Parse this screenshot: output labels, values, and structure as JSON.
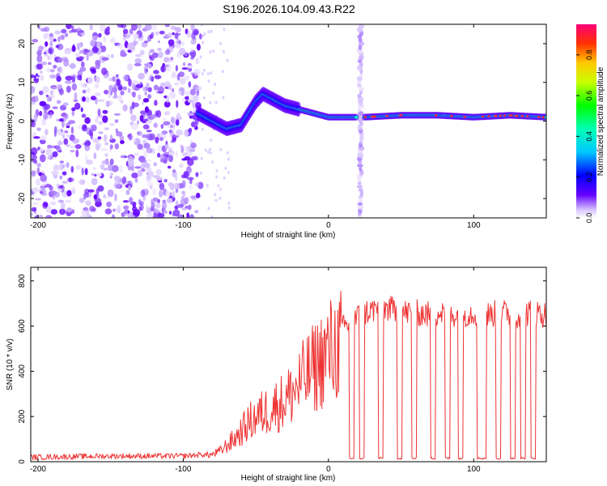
{
  "title": "S196.2026.104.09.43.R22",
  "chart_data": [
    {
      "type": "heatmap",
      "title": "S196.2026.104.09.43.R22",
      "xlabel": "Height of straight line (km)",
      "ylabel": "Frequency (Hz)",
      "xlim": [
        -205,
        150
      ],
      "ylim": [
        -25,
        25
      ],
      "xticks": [
        -200,
        -100,
        0,
        100
      ],
      "yticks": [
        -20,
        -10,
        0,
        10,
        20
      ],
      "colorbar": {
        "label": "Normalized spectral amplitude",
        "range": [
          0.0,
          0.95
        ],
        "ticks": [
          0.0,
          0.2,
          0.4,
          0.6,
          0.8
        ],
        "colors": [
          "#ffffff",
          "#6400ff",
          "#0000ff",
          "#00ffff",
          "#00ff00",
          "#ffff00",
          "#ff8000",
          "#ff0000",
          "#ff0080"
        ]
      },
      "noise_region_x": [
        -205,
        -88
      ],
      "vertical_stripe_x": 22,
      "ridge": {
        "x": [
          -90,
          -80,
          -70,
          -60,
          -50,
          -45,
          -40,
          -30,
          -20,
          -10,
          0,
          10,
          15,
          25,
          50,
          75,
          100,
          125,
          150
        ],
        "frequency": [
          2,
          0,
          -2,
          -1,
          5,
          7,
          6,
          4,
          3,
          2,
          1,
          1,
          1,
          1,
          1.5,
          1.5,
          1,
          1.5,
          1
        ]
      }
    },
    {
      "type": "line",
      "xlabel": "Height of straight line (km)",
      "ylabel": "SNR (10 * v/v)",
      "xlim": [
        -205,
        150
      ],
      "ylim": [
        0,
        860
      ],
      "xticks": [
        -200,
        -100,
        0,
        100
      ],
      "yticks": [
        0,
        200,
        400,
        600,
        800
      ],
      "series": [
        {
          "name": "SNR",
          "color": "#ee3333",
          "x": [
            -205,
            -150,
            -100,
            -90,
            -80,
            -75,
            -70,
            -65,
            -60,
            -55,
            -50,
            -45,
            -40,
            -35,
            -30,
            -25,
            -20,
            -15,
            -10,
            -5,
            0,
            5,
            10,
            15,
            20,
            25,
            30,
            35,
            40,
            45,
            50,
            60,
            70,
            80,
            90,
            100,
            110,
            120,
            130,
            140,
            150
          ],
          "y": [
            20,
            25,
            25,
            30,
            35,
            50,
            80,
            110,
            150,
            190,
            220,
            240,
            260,
            280,
            300,
            340,
            380,
            420,
            460,
            500,
            540,
            560,
            590,
            610,
            640,
            660,
            670,
            680,
            680,
            670,
            660,
            660,
            650,
            660,
            650,
            660,
            650,
            660,
            650,
            660,
            650
          ],
          "dropouts_x": [
            16,
            23,
            36,
            49,
            59,
            72,
            82,
            91,
            104,
            107,
            117,
            127,
            134,
            141
          ]
        }
      ]
    }
  ]
}
